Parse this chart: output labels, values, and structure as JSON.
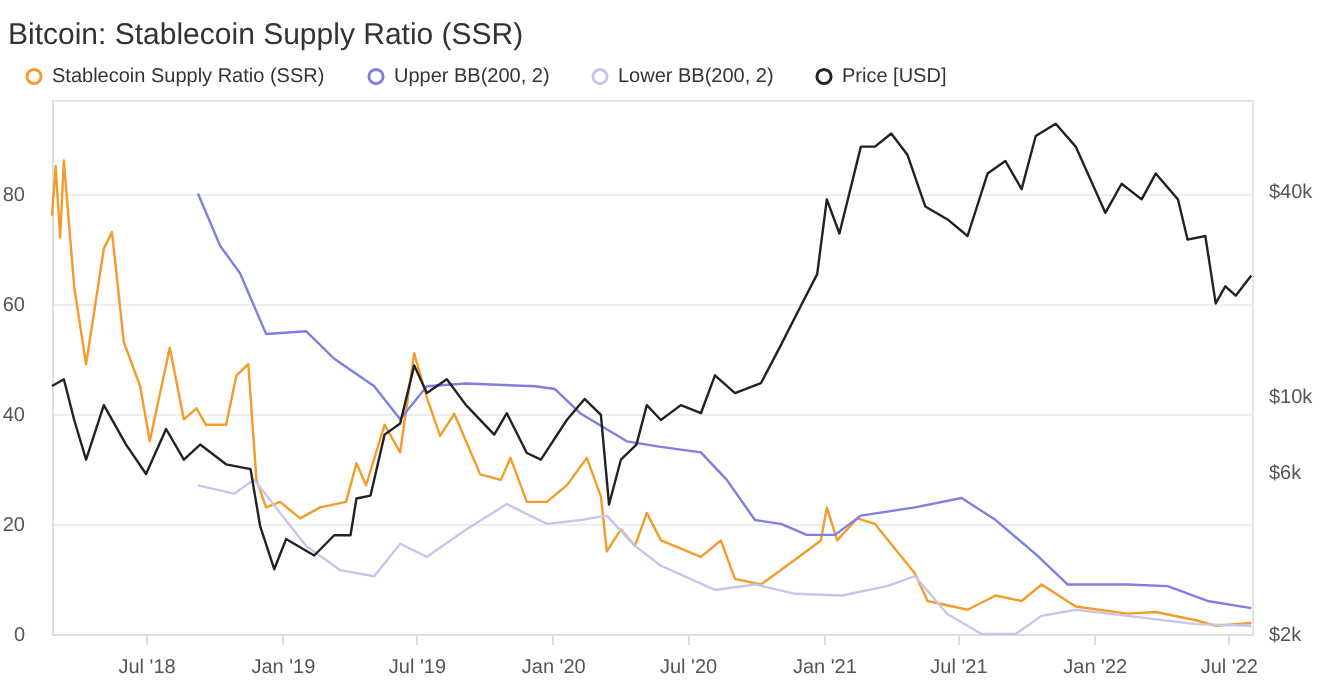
{
  "chart_data": {
    "type": "line",
    "title": "Bitcoin: Stablecoin Supply Ratio (SSR)",
    "xlim": [
      "2018-02-24",
      "2022-08-02"
    ],
    "xticks": [
      {
        "value": "2018-07-01",
        "label": "Jul '18"
      },
      {
        "value": "2019-01-01",
        "label": "Jan '19"
      },
      {
        "value": "2019-07-01",
        "label": "Jul '19"
      },
      {
        "value": "2020-01-01",
        "label": "Jan '20"
      },
      {
        "value": "2020-07-01",
        "label": "Jul '20"
      },
      {
        "value": "2021-01-01",
        "label": "Jan '21"
      },
      {
        "value": "2021-07-01",
        "label": "Jul '21"
      },
      {
        "value": "2022-01-01",
        "label": "Jan '22"
      },
      {
        "value": "2022-07-01",
        "label": "Jul '22"
      }
    ],
    "ylim": [
      0,
      97
    ],
    "yticks": [
      0,
      20,
      40,
      60,
      80
    ],
    "y2lim": [
      2000,
      74000
    ],
    "y2ticks": [
      {
        "value": 2000,
        "label": "$2k"
      },
      {
        "value": 6000,
        "label": "$6k"
      },
      {
        "value": 10000,
        "label": "$10k"
      },
      {
        "value": 40000,
        "label": "$40k"
      }
    ],
    "log": "y2",
    "grid": "y",
    "legend": "top left",
    "series": [
      {
        "name": "Stablecoin Supply Ratio (SSR)",
        "color": "#f39c2b",
        "x": [
          "2018-02-24",
          "2018-03-01",
          "2018-03-07",
          "2018-03-12",
          "2018-03-26",
          "2018-04-11",
          "2018-05-05",
          "2018-05-16",
          "2018-06-01",
          "2018-06-23",
          "2018-07-06",
          "2018-08-02",
          "2018-08-21",
          "2018-09-07",
          "2018-09-20",
          "2018-10-17",
          "2018-10-31",
          "2018-11-16",
          "2018-11-27",
          "2018-12-10",
          "2018-12-29",
          "2019-01-25",
          "2019-02-21",
          "2019-03-28",
          "2019-04-11",
          "2019-04-24",
          "2019-05-19",
          "2019-06-09",
          "2019-06-28",
          "2019-07-15",
          "2019-08-02",
          "2019-08-21",
          "2019-09-06",
          "2019-09-25",
          "2019-10-23",
          "2019-11-05",
          "2019-11-27",
          "2019-12-24",
          "2020-01-20",
          "2020-02-16",
          "2020-03-06",
          "2020-03-14",
          "2020-04-02",
          "2020-04-21",
          "2020-05-07",
          "2020-05-26",
          "2020-07-19",
          "2020-08-15",
          "2020-09-03",
          "2020-10-08",
          "2020-11-23",
          "2020-12-28",
          "2021-01-05",
          "2021-01-19",
          "2021-02-15",
          "2021-03-11",
          "2021-04-10",
          "2021-05-04",
          "2021-05-21",
          "2021-07-14",
          "2021-08-21",
          "2021-09-25",
          "2021-10-22",
          "2021-12-07",
          "2022-02-15",
          "2022-03-25",
          "2022-05-18",
          "2022-06-14",
          "2022-08-01"
        ],
        "values": [
          76,
          85,
          72,
          86,
          63,
          49,
          70,
          73,
          53,
          45,
          35,
          52,
          39,
          41,
          38,
          38,
          47,
          49,
          28,
          23,
          24,
          21,
          23,
          24,
          31,
          27,
          38,
          33,
          51,
          43,
          36,
          40,
          35,
          29,
          28,
          32,
          24,
          24,
          27,
          32,
          25,
          15,
          19,
          16,
          22,
          17,
          14,
          17,
          10,
          9,
          13.5,
          17,
          23,
          17,
          21,
          20,
          15,
          11,
          6,
          4.4,
          7,
          6,
          9,
          5,
          3.7,
          4,
          2.5,
          1.5,
          2
        ]
      },
      {
        "name": "Upper BB(200, 2)",
        "color": "#7f7fe0",
        "x": [
          "2018-09-09",
          "2018-10-09",
          "2018-11-05",
          "2018-12-10",
          "2019-02-02",
          "2019-03-12",
          "2019-05-05",
          "2019-06-09",
          "2019-07-15",
          "2019-09-06",
          "2019-12-08",
          "2020-01-04",
          "2020-02-08",
          "2020-04-10",
          "2020-05-26",
          "2020-07-19",
          "2020-08-23",
          "2020-09-30",
          "2020-11-04",
          "2020-12-09",
          "2021-01-16",
          "2021-02-20",
          "2021-05-04",
          "2021-07-06",
          "2021-08-21",
          "2021-10-14",
          "2021-11-26",
          "2022-02-15",
          "2022-04-10",
          "2022-06-03",
          "2022-08-01"
        ],
        "values": [
          80,
          70.5,
          65.5,
          54.5,
          55,
          50,
          45,
          39,
          45,
          45.5,
          45,
          44.5,
          40,
          35,
          34,
          33,
          28,
          20.7,
          20,
          18,
          18,
          21.5,
          23,
          24.7,
          20.7,
          14.5,
          9,
          9,
          8.7,
          6,
          4.7
        ]
      },
      {
        "name": "Lower BB(200, 2)",
        "color": "#c9c5ea",
        "x": [
          "2018-09-09",
          "2018-10-28",
          "2018-11-24",
          "2018-12-29",
          "2019-02-02",
          "2019-03-20",
          "2019-05-05",
          "2019-06-09",
          "2019-07-15",
          "2019-09-06",
          "2019-10-31",
          "2019-12-24",
          "2020-02-08",
          "2020-03-14",
          "2020-04-21",
          "2020-05-26",
          "2020-08-07",
          "2020-09-30",
          "2020-11-23",
          "2021-01-26",
          "2021-03-27",
          "2021-05-04",
          "2021-06-17",
          "2021-08-02",
          "2021-09-17",
          "2021-10-22",
          "2021-12-07",
          "2022-02-15",
          "2022-05-18",
          "2022-08-01"
        ],
        "values": [
          27,
          25.5,
          28,
          22,
          16,
          11.6,
          10.5,
          16.4,
          14,
          19,
          23.6,
          20,
          20.7,
          21.5,
          16,
          12.4,
          8,
          9,
          7.3,
          7,
          8.7,
          10.5,
          3.6,
          0,
          0,
          3.3,
          4.4,
          3.3,
          1.8,
          1.5
        ]
      },
      {
        "name": "Price [USD]",
        "color": "#222222",
        "axis": "y2",
        "x": [
          "2018-02-24",
          "2018-03-12",
          "2018-03-26",
          "2018-04-11",
          "2018-05-05",
          "2018-06-04",
          "2018-07-01",
          "2018-07-28",
          "2018-08-21",
          "2018-09-12",
          "2018-10-17",
          "2018-11-19",
          "2018-12-02",
          "2018-12-21",
          "2019-01-06",
          "2019-02-13",
          "2019-03-12",
          "2019-04-03",
          "2019-04-11",
          "2019-04-30",
          "2019-05-19",
          "2019-06-09",
          "2019-06-28",
          "2019-07-15",
          "2019-08-11",
          "2019-09-06",
          "2019-10-14",
          "2019-10-31",
          "2019-11-27",
          "2019-12-16",
          "2020-01-20",
          "2020-02-13",
          "2020-03-06",
          "2020-03-17",
          "2020-04-02",
          "2020-04-23",
          "2020-05-07",
          "2020-05-26",
          "2020-06-22",
          "2020-07-19",
          "2020-08-07",
          "2020-09-03",
          "2020-10-08",
          "2020-11-04",
          "2020-12-01",
          "2020-12-23",
          "2021-01-05",
          "2021-01-22",
          "2021-02-20",
          "2021-03-11",
          "2021-04-02",
          "2021-04-24",
          "2021-05-18",
          "2021-06-17",
          "2021-07-14",
          "2021-08-10",
          "2021-09-03",
          "2021-09-25",
          "2021-10-14",
          "2021-11-10",
          "2021-12-07",
          "2022-01-16",
          "2022-02-07",
          "2022-03-06",
          "2022-03-25",
          "2022-04-24",
          "2022-05-07",
          "2022-05-31",
          "2022-06-14",
          "2022-06-27",
          "2022-07-11",
          "2022-08-01"
        ],
        "values": [
          10700,
          11200,
          8500,
          6500,
          9400,
          7200,
          5900,
          8000,
          6500,
          7200,
          6300,
          6100,
          4150,
          3100,
          3800,
          3400,
          3900,
          3900,
          5000,
          5100,
          7700,
          8300,
          12300,
          10200,
          11200,
          9400,
          7700,
          8900,
          6800,
          6500,
          8500,
          9800,
          8800,
          4800,
          6500,
          7200,
          9400,
          8500,
          9400,
          8900,
          11500,
          10200,
          10900,
          14100,
          18400,
          22800,
          37800,
          30000,
          54000,
          54000,
          59000,
          51000,
          36000,
          33000,
          29500,
          45000,
          49000,
          40500,
          58000,
          63000,
          54000,
          34500,
          42000,
          37800,
          45000,
          37800,
          28800,
          29500,
          18700,
          21000,
          19700,
          22600
        ]
      }
    ]
  }
}
